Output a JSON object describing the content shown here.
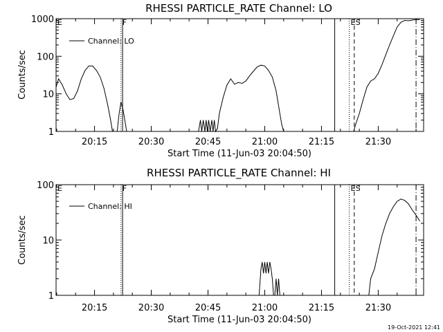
{
  "footer_timestamp": "19-Oct-2021 12:41",
  "chart_data": [
    {
      "type": "line",
      "title": "RHESSI PARTICLE_RATE Channel: LO",
      "xlabel": "Start Time (11-Jun-03 20:04:50)",
      "ylabel": "Counts/sec",
      "yscale": "log",
      "ylim": [
        1,
        1000
      ],
      "xlim": [
        "20:04:50",
        "21:42:00"
      ],
      "xticks": [
        "20:15",
        "20:30",
        "20:45",
        "21:00",
        "21:15",
        "21:30"
      ],
      "yticks": [
        "1",
        "10",
        "100",
        "1000"
      ],
      "legend": {
        "label": "Channel: LO",
        "position": "top-left"
      },
      "markers": [
        {
          "time": "20:04:50",
          "label": "E",
          "style": "solid"
        },
        {
          "time": "20:22:00",
          "label": "F",
          "style": "dotted"
        },
        {
          "time": "20:22:25",
          "label": "",
          "style": "solid"
        },
        {
          "time": "21:18:30",
          "label": "",
          "style": "solid"
        },
        {
          "time": "21:22:20",
          "label": "E",
          "style": "dotted"
        },
        {
          "time": "21:23:40",
          "label": "S",
          "style": "dashed"
        },
        {
          "time": "21:40:00",
          "label": "",
          "style": "dashdot"
        }
      ],
      "series": [
        {
          "name": "Channel: LO",
          "segments": [
            [
              [
                "20:04:50",
                15
              ],
              [
                "20:05:30",
                25
              ],
              [
                "20:06:30",
                17
              ],
              [
                "20:07:30",
                10
              ],
              [
                "20:08:30",
                7
              ],
              [
                "20:09:30",
                7.5
              ],
              [
                "20:10:30",
                12
              ],
              [
                "20:11:30",
                25
              ],
              [
                "20:12:30",
                42
              ],
              [
                "20:13:30",
                55
              ],
              [
                "20:14:30",
                55
              ],
              [
                "20:15:30",
                42
              ],
              [
                "20:16:30",
                28
              ],
              [
                "20:17:30",
                14
              ],
              [
                "20:18:30",
                5
              ],
              [
                "20:19:15",
                2
              ],
              [
                "20:19:45",
                1
              ]
            ],
            [
              [
                "20:21:00",
                1
              ],
              [
                "20:21:30",
                3
              ],
              [
                "20:22:00",
                6
              ],
              [
                "20:22:30",
                4
              ],
              [
                "20:23:00",
                2
              ],
              [
                "20:23:30",
                1
              ]
            ],
            [
              [
                "20:42:30",
                1
              ],
              [
                "20:43:00",
                2
              ],
              [
                "20:43:20",
                1
              ],
              [
                "20:43:45",
                2
              ],
              [
                "20:44:10",
                1
              ],
              [
                "20:44:30",
                2
              ],
              [
                "20:44:50",
                1
              ],
              [
                "20:45:10",
                2
              ],
              [
                "20:45:35",
                1
              ],
              [
                "20:46:00",
                2
              ],
              [
                "20:46:20",
                1
              ],
              [
                "20:46:40",
                2
              ],
              [
                "20:47:00",
                1
              ],
              [
                "20:47:30",
                1.2
              ],
              [
                "20:48:00",
                3
              ],
              [
                "20:49:00",
                8
              ],
              [
                "20:50:00",
                17
              ],
              [
                "20:51:00",
                25
              ],
              [
                "20:52:00",
                18
              ],
              [
                "20:53:00",
                20
              ],
              [
                "20:54:00",
                19
              ],
              [
                "20:55:00",
                22
              ],
              [
                "20:56:00",
                30
              ],
              [
                "20:57:00",
                40
              ],
              [
                "20:58:00",
                52
              ],
              [
                "20:59:00",
                58
              ],
              [
                "21:00:00",
                55
              ],
              [
                "21:01:00",
                42
              ],
              [
                "21:02:00",
                28
              ],
              [
                "21:03:00",
                12
              ],
              [
                "21:03:30",
                6
              ],
              [
                "21:04:00",
                3
              ],
              [
                "21:04:30",
                1.5
              ],
              [
                "21:05:00",
                1
              ]
            ],
            [
              [
                "21:23:30",
                1
              ],
              [
                "21:24:00",
                1.5
              ],
              [
                "21:25:00",
                3
              ],
              [
                "21:26:00",
                7
              ],
              [
                "21:27:00",
                15
              ],
              [
                "21:28:00",
                22
              ],
              [
                "21:29:00",
                25
              ],
              [
                "21:30:00",
                35
              ],
              [
                "21:31:00",
                60
              ],
              [
                "21:32:00",
                110
              ],
              [
                "21:33:00",
                200
              ],
              [
                "21:34:00",
                350
              ],
              [
                "21:35:00",
                600
              ],
              [
                "21:36:00",
                800
              ],
              [
                "21:37:00",
                900
              ],
              [
                "21:38:00",
                880
              ],
              [
                "21:39:00",
                920
              ],
              [
                "21:40:00",
                950
              ],
              [
                "21:41:00",
                940
              ]
            ]
          ]
        }
      ]
    },
    {
      "type": "line",
      "title": "RHESSI PARTICLE_RATE Channel: HI",
      "xlabel": "Start Time (11-Jun-03 20:04:50)",
      "ylabel": "Counts/sec",
      "yscale": "log",
      "ylim": [
        1,
        100
      ],
      "xlim": [
        "20:04:50",
        "21:42:00"
      ],
      "xticks": [
        "20:15",
        "20:30",
        "20:45",
        "21:00",
        "21:15",
        "21:30"
      ],
      "yticks": [
        "1",
        "10",
        "100"
      ],
      "legend": {
        "label": "Channel: HI",
        "position": "top-left"
      },
      "markers": [
        {
          "time": "20:04:50",
          "label": "E",
          "style": "solid"
        },
        {
          "time": "20:22:00",
          "label": "F",
          "style": "dotted"
        },
        {
          "time": "20:22:25",
          "label": "",
          "style": "solid"
        },
        {
          "time": "21:18:30",
          "label": "",
          "style": "solid"
        },
        {
          "time": "21:22:20",
          "label": "E",
          "style": "dotted"
        },
        {
          "time": "21:23:40",
          "label": "S",
          "style": "dashed"
        },
        {
          "time": "21:40:00",
          "label": "",
          "style": "dashdot"
        }
      ],
      "series": [
        {
          "name": "Channel: HI",
          "segments": [
            [
              [
                "20:58:30",
                1
              ],
              [
                "20:59:00",
                3
              ],
              [
                "20:59:20",
                4
              ],
              [
                "20:59:40",
                2.5
              ],
              [
                "21:00:00",
                4
              ],
              [
                "21:00:20",
                2.5
              ],
              [
                "21:00:40",
                4
              ],
              [
                "21:01:00",
                2.5
              ],
              [
                "21:01:20",
                4
              ],
              [
                "21:01:40",
                3
              ],
              [
                "21:02:00",
                2
              ],
              [
                "21:02:20",
                1
              ]
            ],
            [
              [
                "21:02:40",
                1
              ],
              [
                "21:03:00",
                2
              ],
              [
                "21:03:20",
                1
              ],
              [
                "21:03:40",
                2
              ],
              [
                "21:04:00",
                1
              ]
            ],
            [
              [
                "21:27:30",
                1
              ],
              [
                "21:28:00",
                2
              ],
              [
                "21:29:00",
                3
              ],
              [
                "21:30:00",
                6
              ],
              [
                "21:31:00",
                12
              ],
              [
                "21:32:00",
                20
              ],
              [
                "21:33:00",
                30
              ],
              [
                "21:34:00",
                40
              ],
              [
                "21:35:00",
                50
              ],
              [
                "21:36:00",
                55
              ],
              [
                "21:37:00",
                52
              ],
              [
                "21:38:00",
                45
              ],
              [
                "21:39:00",
                35
              ],
              [
                "21:40:00",
                28
              ],
              [
                "21:41:00",
                22
              ]
            ]
          ]
        }
      ]
    }
  ]
}
